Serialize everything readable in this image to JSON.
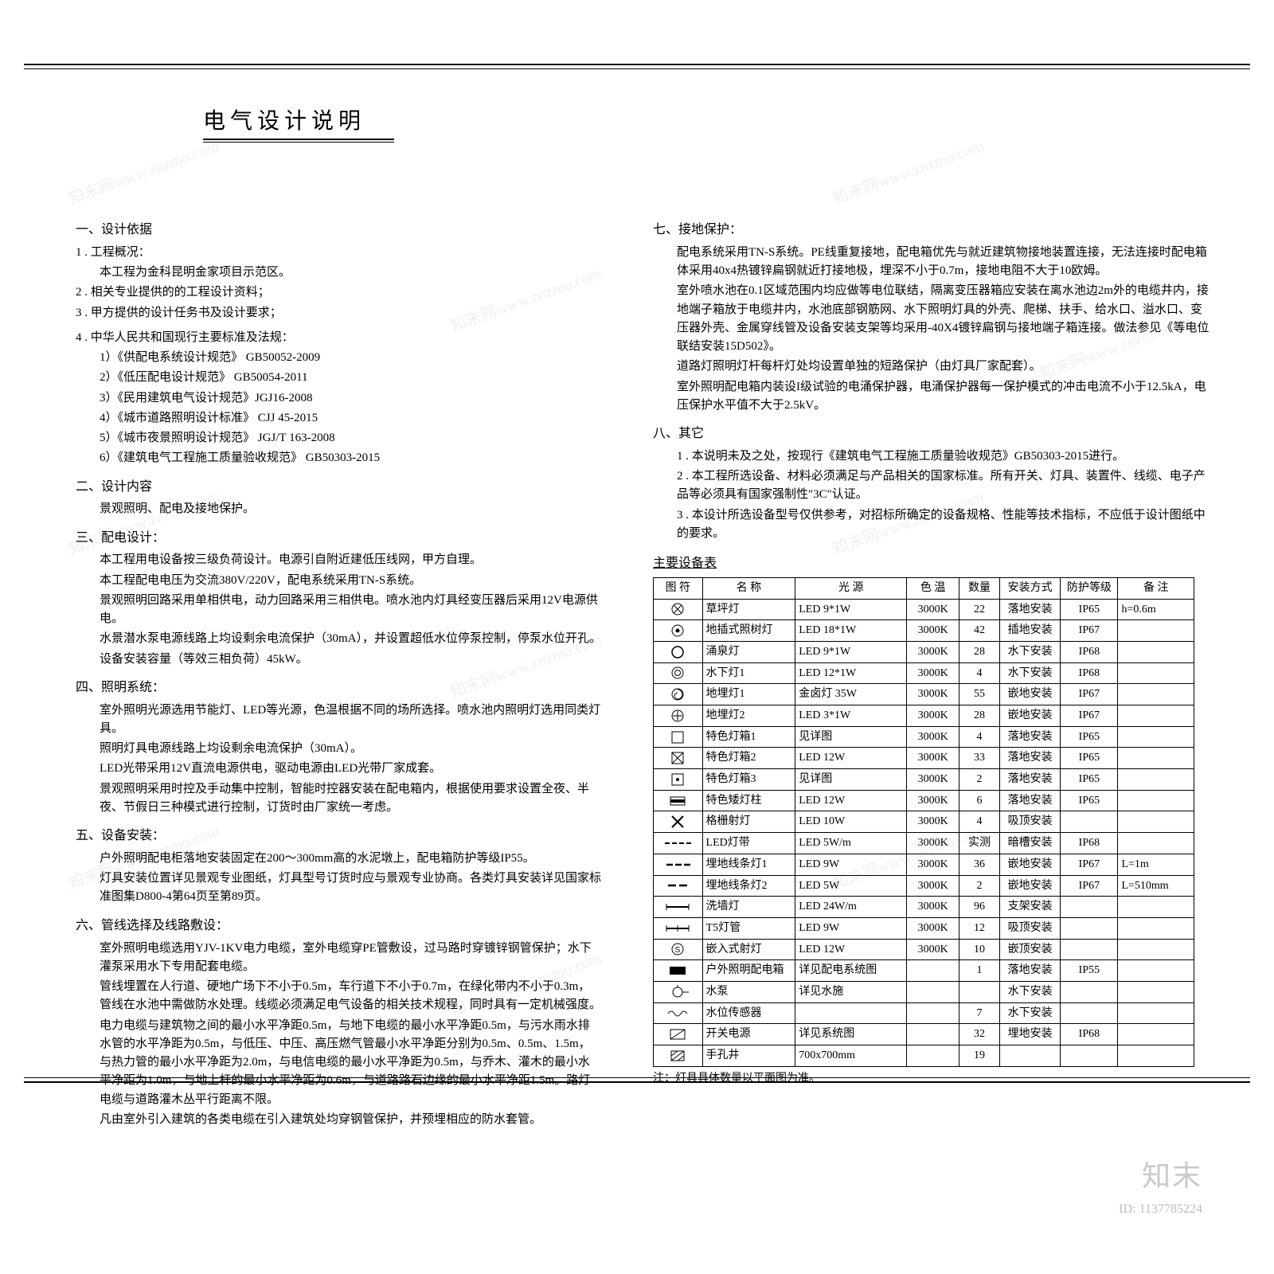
{
  "title": "电气设计说明",
  "watermark": {
    "brand": "知末",
    "id": "ID: 1137785224",
    "diag_text": "知末网www.znzmo.com"
  },
  "left": {
    "s1": {
      "h": "一、设计依据",
      "items": [
        "1 . 工程概况：",
        "本工程为金科昆明金家项目示范区。",
        "2 . 相关专业提供的的工程设计资料；",
        "3 . 甲方提供的设计任务书及设计要求；",
        "4 . 中华人民共和国现行主要标准及法规："
      ],
      "codes": [
        "1）《供配电系统设计规范》 GB50052-2009",
        "2）《低压配电设计规范》 GB50054-2011",
        "3）《民用建筑电气设计规范》JGJ16-2008",
        "4）《城市道路照明设计标准》 CJJ 45-2015",
        "5）《城市夜景照明设计规范》 JGJ/T 163-2008",
        "6）《建筑电气工程施工质量验收规范》 GB50303-2015"
      ]
    },
    "s2": {
      "h": "二、设计内容",
      "p": "景观照明、配电及接地保护。"
    },
    "s3": {
      "h": "三、配电设计：",
      "lines": [
        "本工程用电设备按三级负荷设计。电源引自附近建低压线网，甲方自理。",
        "本工程配电电压为交流380V/220V，配电系统采用TN-S系统。",
        "景观照明回路采用单相供电，动力回路采用三相供电。喷水池内灯具经变压器后采用12V电源供电。",
        "水景潜水泵电源线路上均设剩余电流保护（30mA），并设置超低水位停泵控制，停泵水位开孔。",
        "设备安装容量（等效三相负荷）45kW。"
      ]
    },
    "s4": {
      "h": "四、照明系统：",
      "lines": [
        "室外照明光源选用节能灯、LED等光源，色温根据不同的场所选择。喷水池内照明灯选用同类灯具。",
        "照明灯具电源线路上均设剩余电流保护（30mA）。",
        "LED光带采用12V直流电源供电，驱动电源由LED光带厂家成套。",
        "景观照明采用时控及手动集中控制，智能时控器安装在配电箱内，根据使用要求设置全夜、半夜、节假日三种模式进行控制，订货时由厂家统一考虑。"
      ]
    },
    "s5": {
      "h": "五、设备安装：",
      "lines": [
        "户外照明配电柜落地安装固定在200～300mm高的水泥墩上，配电箱防护等级IP55。",
        "灯具安装位置详见景观专业图纸，灯具型号订货时应与景观专业协商。各类灯具安装详见国家标准图集D800-4第64页至第89页。"
      ]
    },
    "s6": {
      "h": "六、管线选择及线路敷设：",
      "lines": [
        "室外照明电缆选用YJV-1KV电力电缆，室外电缆穿PE管敷设，过马路时穿镀锌钢管保护；水下灌泵采用水下专用配套电缆。",
        "管线埋置在人行道、硬地广场下不小于0.5m，车行道下不小于0.7m，在绿化带内不小于0.3m，管线在水池中需做防水处理。线缆必须满足电气设备的相关技术规程，同时具有一定机械强度。",
        "电力电缆与建筑物之间的最小水平净距0.5m，与地下电缆的最小水平净距0.5m，与污水雨水排水管的水平净距为0.5m，与低压、中压、高压燃气管最小水平净距分别为0.5m、0.5m、1.5m，与热力管的最小水平净距为2.0m，与电信电缆的最小水平净距为0.5m，与乔木、灌木的最小水平净距为1.0m，与地上杆的最小水平净距为0.6m，与道路路石边缘的最小水平净距1.5m。路灯电缆与道路灌木丛平行距离不限。",
        "凡由室外引入建筑的各类电缆在引入建筑处均穿钢管保护，并预埋相应的防水套管。"
      ]
    }
  },
  "right": {
    "s7": {
      "h": "七、接地保护：",
      "lines": [
        "配电系统采用TN-S系统。PE线重复接地，配电箱优先与就近建筑物接地装置连接，无法连接时配电箱体采用40x4热镀锌扁钢就近打接地极，埋深不小于0.7m，接地电阻不大于10欧姆。",
        "室外喷水池在0.1区域范围内均应做等电位联结，隔离变压器箱应安装在离水池边2m外的电缆井内，接地端子箱放于电缆井内，水池底部钢筋网、水下照明灯具的外壳、爬梯、扶手、给水口、溢水口、变压器外壳、金属穿线管及设备安装支架等均采用-40X4镀锌扁钢与接地端子箱连接。做法参见《等电位联结安装15D502》。",
        "道路灯照明灯杆每杆灯处均设置单独的短路保护（由灯具厂家配套）。",
        "室外照明配电箱内装设I级试验的电涌保护器，电涌保护器每一保护模式的冲击电流不小于12.5kA，电压保护水平值不大于2.5kV。"
      ]
    },
    "s8": {
      "h": "八、其它",
      "lines": [
        "1 . 本说明未及之处，按现行《建筑电气工程施工质量验收规范》GB50303-2015进行。",
        "2 . 本工程所选设备、材料必须满足与产品相关的国家标准。所有开关、灯具、装置件、线缆、电子产品等必须具有国家强制性\"3C\"认证。",
        "3 . 本设计所选设备型号仅供参考，对招标所确定的设备规格、性能等技术指标，不应低于设计图纸中的要求。"
      ]
    },
    "table": {
      "title": "主要设备表",
      "headers": [
        "图 符",
        "名   称",
        "光        源",
        "色  温",
        "数量",
        "安装方式",
        "防护等级",
        "备      注"
      ],
      "rows": [
        {
          "sym": "circle-x",
          "name": "草坪灯",
          "src": "LED  9*1W",
          "ct": "3000K",
          "qty": "22",
          "inst": "落地安装",
          "ip": "IP65",
          "note": "h=0.6m"
        },
        {
          "sym": "circle-dot",
          "name": "地插式照树灯",
          "src": "LED  18*1W",
          "ct": "3000K",
          "qty": "42",
          "inst": "插地安装",
          "ip": "IP67",
          "note": ""
        },
        {
          "sym": "circle",
          "name": "涌泉灯",
          "src": "LED  9*1W",
          "ct": "3000K",
          "qty": "28",
          "inst": "水下安装",
          "ip": "IP68",
          "note": ""
        },
        {
          "sym": "circle-ring",
          "name": "水下灯1",
          "src": "LED  12*1W",
          "ct": "3000K",
          "qty": "4",
          "inst": "水下安装",
          "ip": "IP68",
          "note": ""
        },
        {
          "sym": "circle-spiral",
          "name": "地埋灯1",
          "src": "金卤灯  35W",
          "ct": "3000K",
          "qty": "55",
          "inst": "嵌地安装",
          "ip": "IP67",
          "note": ""
        },
        {
          "sym": "circle-plus",
          "name": "地埋灯2",
          "src": "LED  3*1W",
          "ct": "3000K",
          "qty": "28",
          "inst": "嵌地安装",
          "ip": "IP67",
          "note": ""
        },
        {
          "sym": "square",
          "name": "特色灯箱1",
          "src": "见详图",
          "ct": "3000K",
          "qty": "4",
          "inst": "落地安装",
          "ip": "IP65",
          "note": ""
        },
        {
          "sym": "square-x",
          "name": "特色灯箱2",
          "src": "LED  12W",
          "ct": "3000K",
          "qty": "33",
          "inst": "落地安装",
          "ip": "IP65",
          "note": ""
        },
        {
          "sym": "square-dot",
          "name": "特色灯箱3",
          "src": "见详图",
          "ct": "3000K",
          "qty": "2",
          "inst": "落地安装",
          "ip": "IP65",
          "note": ""
        },
        {
          "sym": "square-bar",
          "name": "特色矮灯柱",
          "src": "LED  12W",
          "ct": "3000K",
          "qty": "6",
          "inst": "落地安装",
          "ip": "IP65",
          "note": ""
        },
        {
          "sym": "x",
          "name": "格栅射灯",
          "src": "LED  10W",
          "ct": "3000K",
          "qty": "4",
          "inst": "吸顶安装",
          "ip": "",
          "note": ""
        },
        {
          "sym": "dash4",
          "name": "LED灯带",
          "src": "LED  5W/m",
          "ct": "3000K",
          "qty": "实测",
          "inst": "暗槽安装",
          "ip": "IP68",
          "note": ""
        },
        {
          "sym": "dash3",
          "name": "埋地线条灯1",
          "src": "LED  9W",
          "ct": "3000K",
          "qty": "36",
          "inst": "嵌地安装",
          "ip": "IP67",
          "note": "L=1m"
        },
        {
          "sym": "dash2",
          "name": "埋地线条灯2",
          "src": "LED  5W",
          "ct": "3000K",
          "qty": "2",
          "inst": "嵌地安装",
          "ip": "IP67",
          "note": "L=510mm"
        },
        {
          "sym": "hbar",
          "name": "洗墙灯",
          "src": "LED  24W/m",
          "ct": "3000K",
          "qty": "96",
          "inst": "支架安装",
          "ip": "",
          "note": ""
        },
        {
          "sym": "tbar",
          "name": "T5灯管",
          "src": "LED  9W",
          "ct": "3000K",
          "qty": "12",
          "inst": "吸顶安装",
          "ip": "",
          "note": ""
        },
        {
          "sym": "circle-s",
          "name": "嵌入式射灯",
          "src": "LED  12W",
          "ct": "3000K",
          "qty": "10",
          "inst": "嵌顶安装",
          "ip": "",
          "note": ""
        },
        {
          "sym": "rect-fill",
          "name": "户外照明配电箱",
          "src": "详见配电系统图",
          "ct": "",
          "qty": "1",
          "inst": "落地安装",
          "ip": "IP55",
          "note": ""
        },
        {
          "sym": "pump",
          "name": "水泵",
          "src": "详见水施",
          "ct": "",
          "qty": "",
          "inst": "水下安装",
          "ip": "",
          "note": ""
        },
        {
          "sym": "wave",
          "name": "水位传感器",
          "src": "",
          "ct": "",
          "qty": "7",
          "inst": "水下安装",
          "ip": "",
          "note": ""
        },
        {
          "sym": "switch",
          "name": "开关电源",
          "src": "详见系统图",
          "ct": "",
          "qty": "32",
          "inst": "埋地安装",
          "ip": "IP68",
          "note": ""
        },
        {
          "sym": "hatch",
          "name": "手孔井",
          "src": "700x700mm",
          "ct": "",
          "qty": "19",
          "inst": "",
          "ip": "",
          "note": ""
        }
      ],
      "footnote": "注：灯具具体数量以平面图为准。"
    }
  }
}
